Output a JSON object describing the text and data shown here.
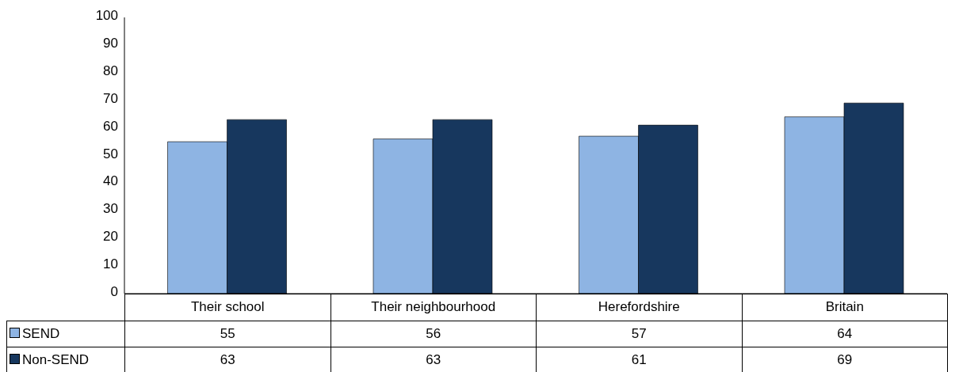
{
  "chart_data": {
    "type": "bar",
    "categories": [
      "Their school",
      "Their neighbourhood",
      "Herefordshire",
      "Britain"
    ],
    "series": [
      {
        "name": "SEND",
        "color": "#8eb4e3",
        "values": [
          55,
          56,
          57,
          64
        ]
      },
      {
        "name": "Non-SEND",
        "color": "#17375e",
        "values": [
          63,
          63,
          61,
          69
        ]
      }
    ],
    "ylim": [
      0,
      100
    ],
    "yticks": [
      0,
      10,
      20,
      30,
      40,
      50,
      60,
      70,
      80,
      90,
      100
    ],
    "data_labels": true,
    "legend": "bottom",
    "grid": false
  }
}
